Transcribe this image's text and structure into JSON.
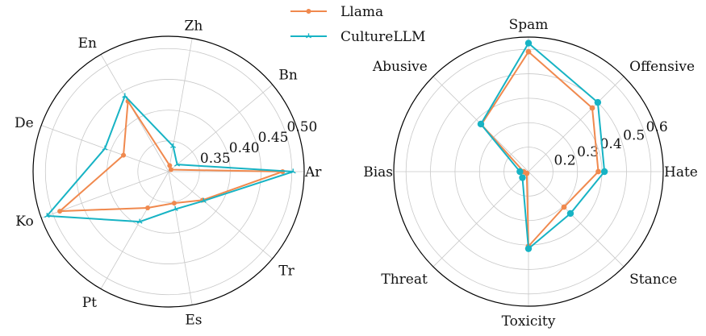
{
  "legend": {
    "placement": "top-center",
    "entries": [
      {
        "name": "Llama",
        "color": "#f0894e",
        "marker": "dot"
      },
      {
        "name": "CultureLLM",
        "color": "#17b3c4",
        "marker": "tri"
      }
    ]
  },
  "chart_data": [
    {
      "type": "radar",
      "title": "",
      "categories": [
        "Ar",
        "Bn",
        "Zh",
        "En",
        "De",
        "Ko",
        "Pt",
        "Es",
        "Tr"
      ],
      "rlim": [
        0.3,
        0.52
      ],
      "rticks": [
        0.35,
        0.4,
        0.45,
        0.5
      ],
      "rtick_labels": [
        "0.35",
        "0.40",
        "0.45",
        "0.50"
      ],
      "grid": true,
      "series": [
        {
          "name": "Llama",
          "values": [
            0.485,
            0.305,
            0.31,
            0.432,
            0.378,
            0.488,
            0.368,
            0.352,
            0.372
          ]
        },
        {
          "name": "CultureLLM",
          "values": [
            0.502,
            0.318,
            0.342,
            0.442,
            0.41,
            0.51,
            0.394,
            0.362,
            0.374
          ]
        }
      ]
    },
    {
      "type": "radar",
      "title": "",
      "categories": [
        "Hate",
        "Offensive",
        "Spam",
        "Abusive",
        "Bias",
        "Threat",
        "Toxicity",
        "Stance"
      ],
      "rlim": [
        0.1,
        0.65
      ],
      "rticks": [
        0.2,
        0.3,
        0.4,
        0.5,
        0.6
      ],
      "rtick_labels": [
        "0.2",
        "0.3",
        "0.4",
        "0.5",
        "0.6"
      ],
      "grid": true,
      "series": [
        {
          "name": "Llama",
          "values": [
            0.385,
            0.468,
            0.59,
            0.372,
            0.12,
            0.11,
            0.405,
            0.305
          ]
        },
        {
          "name": "CultureLLM",
          "values": [
            0.41,
            0.5,
            0.625,
            0.375,
            0.135,
            0.135,
            0.415,
            0.342
          ]
        }
      ]
    }
  ]
}
